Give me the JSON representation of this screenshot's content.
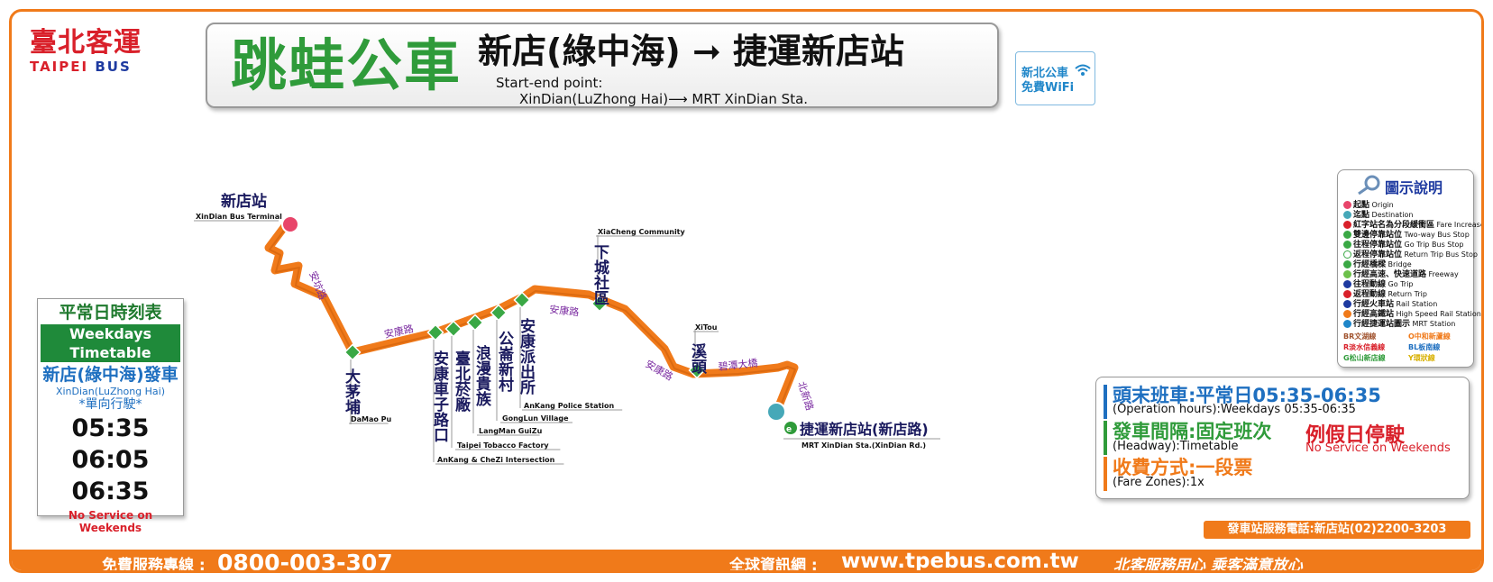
{
  "operator": {
    "name_zh": "臺北客運",
    "name_en_1": "TAIPEI",
    "name_en_2": "BUS"
  },
  "header": {
    "brand": "跳蛙公車",
    "route_title": "新店(綠中海) ➞ 捷運新店站",
    "start_end_label": "Start-end point:",
    "start_end_value": "XinDian(LuZhong Hai)⟶ MRT XinDian Sta."
  },
  "wifi": {
    "line1": "新北公車",
    "line2": "免費WiFi"
  },
  "route_map": {
    "origin": {
      "zh": "新店站",
      "en": "XinDian Bus Terminal"
    },
    "destination": {
      "zh": "捷運新店站(新店路)",
      "en": "MRT XinDian Sta.(XinDian Rd.)"
    },
    "stops": [
      {
        "zh": "大茅埔",
        "en": "DaMao Pu"
      },
      {
        "zh": "安康車子路口",
        "en": "AnKang & CheZi Intersection"
      },
      {
        "zh": "臺北菸廠",
        "en": "Taipei Tobacco Factory"
      },
      {
        "zh": "浪漫貴族",
        "en": "LangMan GuiZu"
      },
      {
        "zh": "公崙新村",
        "en": "GongLun Village"
      },
      {
        "zh": "安康派出所",
        "en": "AnKang Police Station"
      },
      {
        "zh": "下城社區",
        "en": "XiaCheng Community"
      },
      {
        "zh": "溪頭",
        "en": "XiTou"
      }
    ],
    "roads": {
      "ankeng": "安坑路",
      "ankang1": "安康路",
      "ankang2": "安康路",
      "ankang3": "安康路",
      "bitan": "碧潭大橋",
      "xindian": "北新路"
    },
    "line_color": "#f07a1a",
    "stop_color": "#3aa845"
  },
  "timetable": {
    "title_zh": "平常日時刻表",
    "title_en": "Weekdays Timetable",
    "depart_zh": "新店(綠中海)發車",
    "depart_en": "XinDian(LuZhong Hai)",
    "oneway": "*單向行駛*",
    "times": [
      "05:35",
      "06:05",
      "06:35"
    ],
    "no_service": "No Service on Weekends"
  },
  "legend": {
    "title": "圖示說明",
    "items": [
      {
        "zh": "起點",
        "en": "Origin"
      },
      {
        "zh": "迄點",
        "en": "Destination"
      },
      {
        "zh": "紅字站名為分段緩衝區",
        "en": "Fare Increase/ Buffer Zone"
      },
      {
        "zh": "雙邊停靠站位",
        "en": "Two-way Bus Stop"
      },
      {
        "zh": "往程停靠站位",
        "en": "Go Trip Bus Stop"
      },
      {
        "zh": "返程停靠站位",
        "en": "Return Trip Bus Stop"
      },
      {
        "zh": "行經橋樑",
        "en": "Bridge"
      },
      {
        "zh": "行經高速、快速道路",
        "en": "Freeway"
      },
      {
        "zh": "往程動線",
        "en": "Go Trip"
      },
      {
        "zh": "返程動線",
        "en": "Return Trip"
      },
      {
        "zh": "行經火車站",
        "en": "Rail Station"
      },
      {
        "zh": "行經高鐵站",
        "en": "High Speed Rail Station"
      },
      {
        "zh": "行經捷運站圖示",
        "en": "MRT Station"
      }
    ],
    "mrt_lines": [
      "BR文湖線",
      "O中和新蘆線",
      "R淡水信義線",
      "BL板南線",
      "G松山新店線",
      "Y環狀線"
    ]
  },
  "info": {
    "hours_title": "頭末班車:平常日05:35-06:35",
    "hours_sub": "(Operation hours):Weekdays 05:35-06:35",
    "headway_title": "發車間隔:固定班次",
    "headway_sub": "(Headway):Timetable",
    "no_service_zh": "例假日停駛",
    "no_service_en": "No Service on Weekends",
    "fare_title": "收費方式:一段票",
    "fare_sub": "(Fare Zones):1x"
  },
  "phone": "發車站服務電話:新店站(02)2200-3203",
  "footer": {
    "hotline_label": "免費服務專線 :",
    "hotline": "0800-003-307",
    "web_label": "全球資訊網 :",
    "web": "www.tpebus.com.tw",
    "slogan": "北客服務用心  乘客滿意放心"
  }
}
